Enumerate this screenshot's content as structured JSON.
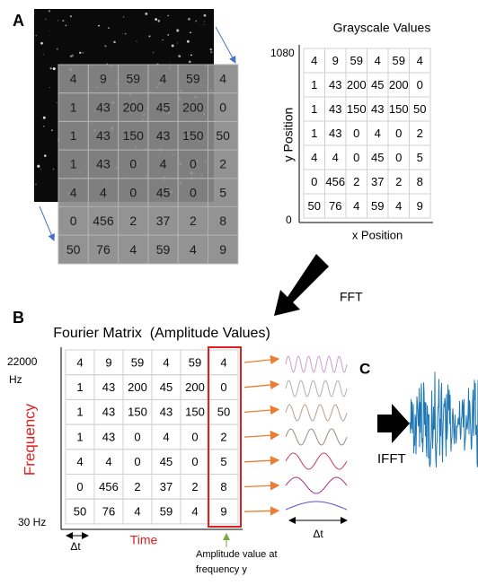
{
  "panel_a": {
    "label": "A",
    "title": "Grayscale Values",
    "y_axis": {
      "label": "y Position",
      "max": "1080",
      "min": "0"
    },
    "x_axis_label": "x Position"
  },
  "fft_label": "FFT",
  "panel_b": {
    "label": "B",
    "title": "Fourier Matrix  (Amplitude Values)",
    "y_axis": {
      "label": "Frequency",
      "top": "22000",
      "top_unit": "Hz",
      "bottom": "30 Hz"
    },
    "x_axis_label": "Time",
    "delta_t": "Δt",
    "annotation": [
      "Amplitude value at",
      "frequency y"
    ],
    "wave_delta_t": "Δt"
  },
  "panel_c": {
    "label": "C",
    "ifft_label": "IFFT"
  },
  "matrix": [
    [
      4,
      9,
      59,
      4,
      59,
      4
    ],
    [
      1,
      43,
      200,
      45,
      200,
      0
    ],
    [
      1,
      43,
      150,
      43,
      150,
      50
    ],
    [
      1,
      43,
      0,
      4,
      0,
      2
    ],
    [
      4,
      4,
      0,
      45,
      0,
      5
    ],
    [
      0,
      456,
      2,
      37,
      2,
      8
    ],
    [
      50,
      76,
      4,
      59,
      4,
      9
    ]
  ]
}
